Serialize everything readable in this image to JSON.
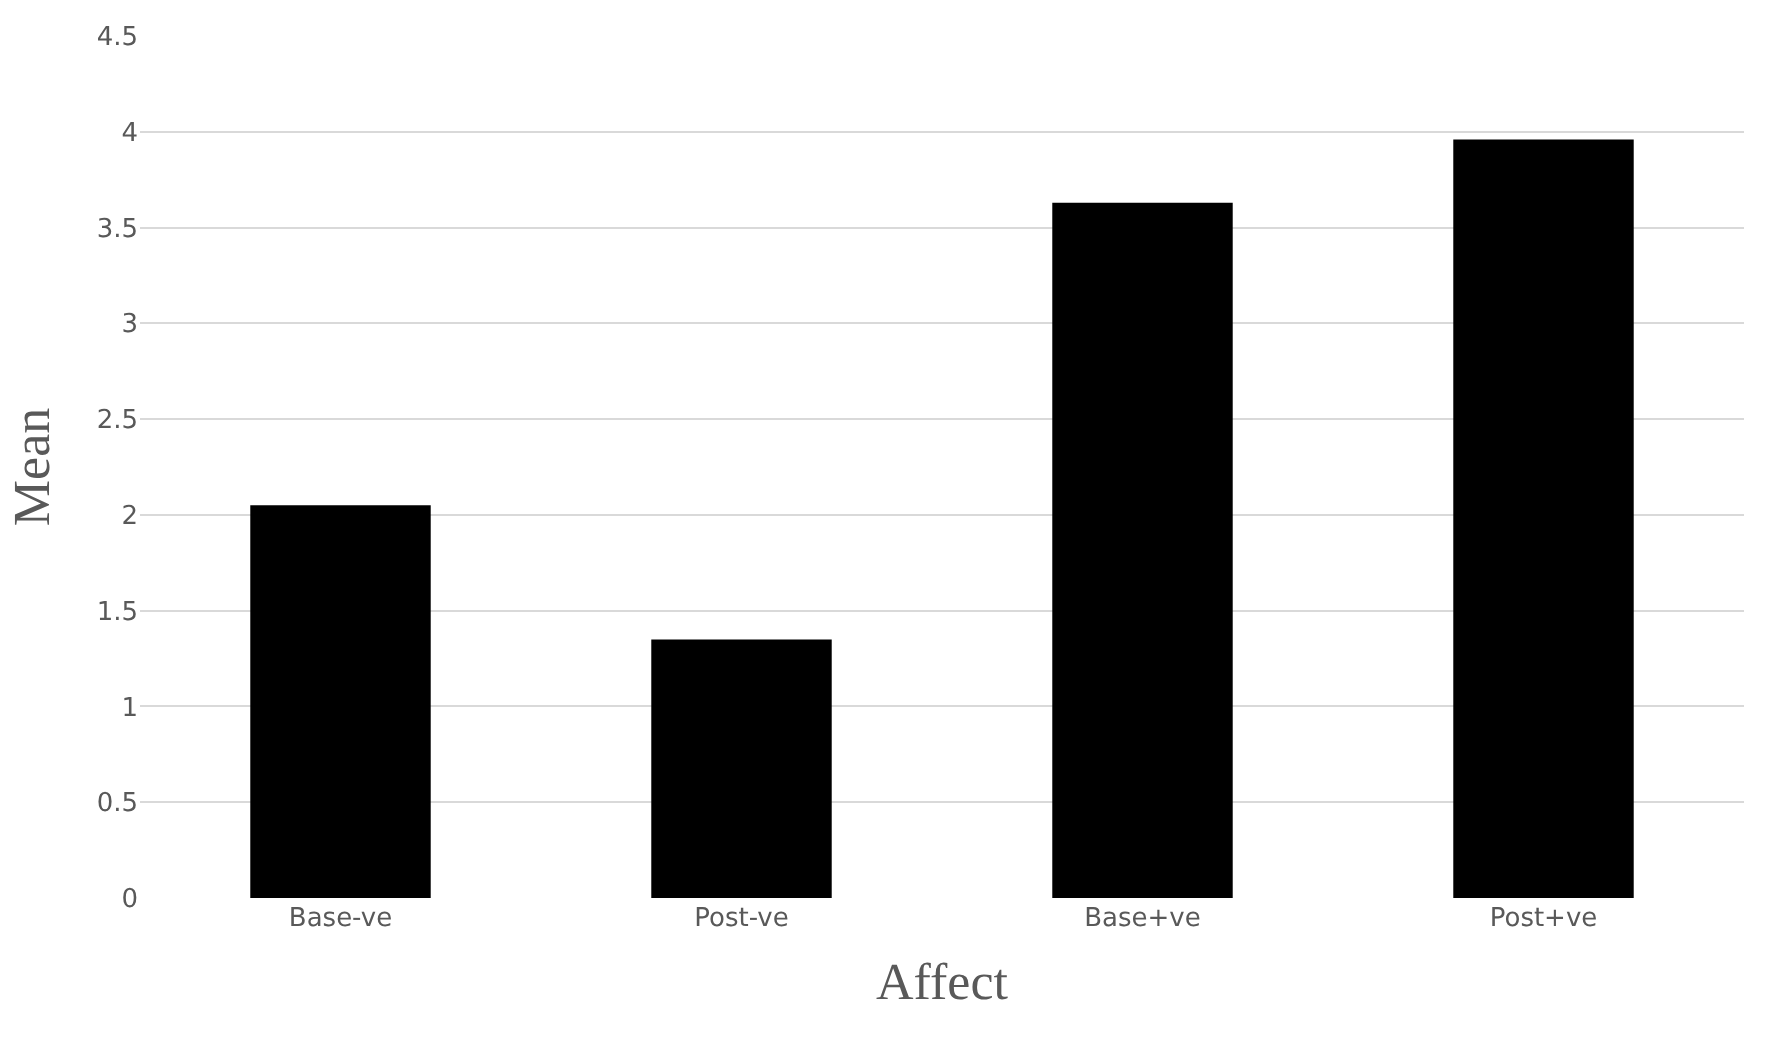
{
  "chart_data": {
    "type": "bar",
    "categories": [
      "Base-ve",
      "Post-ve",
      "Base+ve",
      "Post+ve"
    ],
    "values": [
      2.05,
      1.35,
      3.63,
      3.96
    ],
    "color": "#000000",
    "xlabel": "Affect",
    "ylabel": "Mean",
    "ylim": [
      0,
      4.5
    ],
    "yticks": [
      0,
      0.5,
      1,
      1.5,
      2,
      2.5,
      3,
      3.5,
      4,
      4.5
    ],
    "grid": "y",
    "legend": false
  }
}
